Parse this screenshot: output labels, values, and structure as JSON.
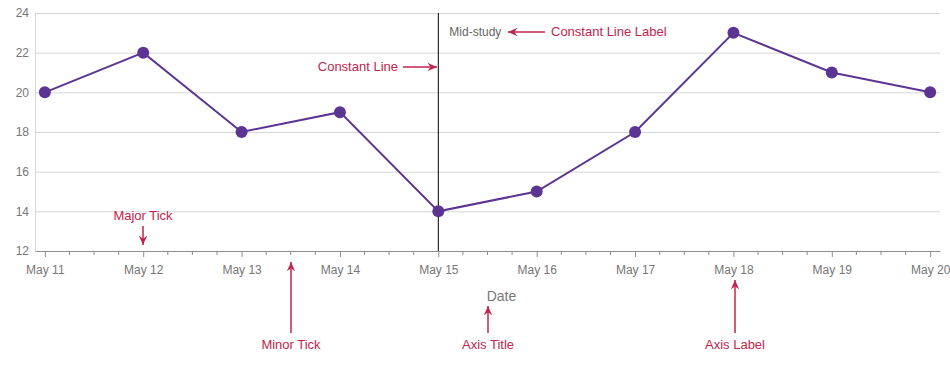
{
  "chart_data": {
    "type": "line",
    "x": [
      "May 11",
      "May 12",
      "May 13",
      "May 14",
      "May 15",
      "May 16",
      "May 17",
      "May 18",
      "May 19",
      "May 20"
    ],
    "values": [
      20,
      22,
      18,
      19,
      14,
      15,
      18,
      23,
      21,
      20
    ],
    "color": "#5c3592",
    "marker": "circle",
    "xlabel": "Date",
    "ylim": [
      12,
      24
    ],
    "yticks": [
      12,
      14,
      16,
      18,
      20,
      22,
      24
    ],
    "grid": true,
    "constant_lines": [
      {
        "value": "May 15",
        "label": "Mid-study"
      }
    ],
    "annotations": [
      {
        "text": "Constant Line Label"
      },
      {
        "text": "Constant Line"
      },
      {
        "text": "Major Tick"
      },
      {
        "text": "Minor Tick"
      },
      {
        "text": "Axis Title"
      },
      {
        "text": "Axis Label"
      }
    ]
  }
}
